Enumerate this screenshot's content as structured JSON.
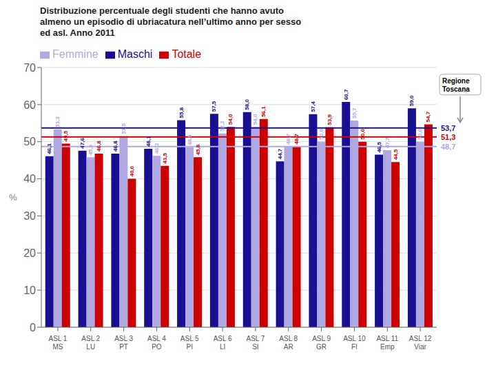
{
  "chart_data": {
    "type": "bar",
    "title": "Distribuzione percentuale degli studenti che hanno avuto\nalmeno un episodio di ubriacatura nell’ultimo anno per sesso\ned asl. Anno 2011",
    "categories": [
      "ASL 1\nMS",
      "ASL 2\nLU",
      "ASL 3\nPT",
      "ASL 4\nPO",
      "ASL 5\nPI",
      "ASL 6\nLI",
      "ASL 7\nSI",
      "ASL 8\nAR",
      "ASL 9\nGR",
      "ASL 10\nFI",
      "ASL 11\nEmp",
      "ASL 12\nViar"
    ],
    "series": [
      {
        "name": "Maschi",
        "color": "#1a0f91",
        "values": [
          46.1,
          47.6,
          46.8,
          48.1,
          55.8,
          57.5,
          58.0,
          44.7,
          57.4,
          60.7,
          46.5,
          59.0
        ],
        "value_labels": [
          "46,1",
          "47,6",
          "46,8",
          "48,1",
          "55,8",
          "57,5",
          "58,0",
          "44,7",
          "57,4",
          "60,7",
          "46,5",
          "59,0"
        ]
      },
      {
        "name": "Femmine",
        "color": "#b0a8e0",
        "values": [
          53.3,
          45.8,
          51.5,
          46.2,
          48.5,
          52.2,
          54.0,
          48.7,
          50.0,
          55.7,
          47.7,
          50.0
        ],
        "value_labels": [
          "53,3",
          "45,8",
          "51,5",
          "46,2",
          "48,5",
          "52,2",
          "54,0",
          "48,7",
          "50,0",
          "55,7",
          "47,7",
          "50,0"
        ]
      },
      {
        "name": "Totale",
        "color": "#cc0000",
        "values": [
          49.5,
          46.8,
          40.0,
          43.5,
          45.8,
          54.0,
          56.1,
          48.7,
          53.9,
          50.0,
          44.5,
          54.7
        ],
        "value_labels": [
          "49,5",
          "46,8",
          "40,0",
          "43,5",
          "45,8",
          "54,0",
          "56,1",
          "48,7",
          "53,9",
          "50,0",
          "44,5",
          "54,7"
        ]
      }
    ],
    "ylabel": "%",
    "ylim": [
      0,
      70
    ],
    "yticks": [
      0,
      10,
      20,
      30,
      40,
      50,
      60,
      70
    ],
    "grid": true,
    "legend": "upper left",
    "data_labels": true,
    "reference_lines": [
      {
        "value": 53.7,
        "label": "53,7",
        "color": "#1a0f91"
      },
      {
        "value": 51.3,
        "label": "51,3",
        "color": "#cc0000"
      },
      {
        "value": 48.7,
        "label": "48,7",
        "color": "#b0a8e0"
      }
    ],
    "annotations": [
      "Regione\nToscana"
    ]
  }
}
